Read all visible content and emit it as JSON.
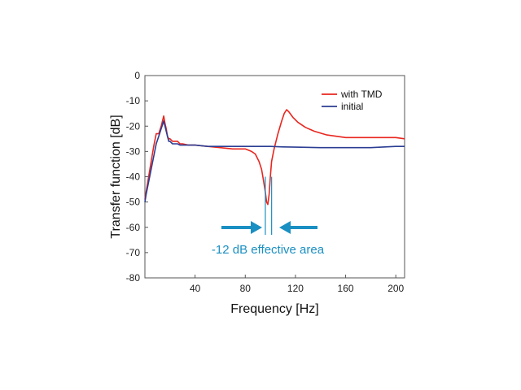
{
  "chart_data": {
    "type": "line",
    "xlabel": "Frequency [Hz]",
    "ylabel": "Transfer function [dB]",
    "xlim": [
      0,
      207
    ],
    "ylim": [
      -80,
      0
    ],
    "xticks": [
      40,
      80,
      120,
      160,
      200
    ],
    "yticks": [
      0,
      -10,
      -20,
      -30,
      -40,
      -50,
      -60,
      -70,
      -80
    ],
    "grid": false,
    "legend_position": "top-right",
    "series": [
      {
        "name": "with TMD",
        "color": "#e8261f",
        "x": [
          0,
          1,
          3,
          5,
          7,
          9,
          11,
          13,
          15,
          16,
          17,
          18,
          19,
          20,
          22,
          24,
          26,
          28,
          30,
          35,
          40,
          50,
          60,
          70,
          80,
          85,
          88,
          91,
          93,
          94,
          95,
          96,
          97,
          98,
          99,
          100,
          101,
          103,
          106,
          109,
          111,
          113,
          115,
          118,
          122,
          128,
          135,
          145,
          160,
          180,
          200,
          207
        ],
        "y": [
          -49,
          -46,
          -40,
          -34,
          -28,
          -23,
          -23,
          -20,
          -16,
          -19,
          -21,
          -24,
          -25,
          -25,
          -26,
          -26,
          -26,
          -27,
          -27,
          -27.5,
          -27.5,
          -28,
          -28.5,
          -29,
          -29,
          -30,
          -31,
          -34,
          -37,
          -40,
          -43,
          -46,
          -50,
          -51,
          -47,
          -40,
          -34,
          -29,
          -23,
          -18,
          -15,
          -13.5,
          -14.5,
          -16.5,
          -18.5,
          -20.5,
          -22,
          -23.5,
          -24.5,
          -24.5,
          -24.5,
          -25
        ]
      },
      {
        "name": "initial",
        "color": "#2a3d93",
        "x": [
          0,
          1,
          3,
          5,
          7,
          9,
          11,
          13,
          15,
          16,
          17,
          18,
          19,
          20,
          22,
          24,
          26,
          28,
          30,
          40,
          50,
          60,
          70,
          80,
          90,
          100,
          110,
          120,
          140,
          160,
          180,
          200,
          207
        ],
        "y": [
          -50,
          -47,
          -42,
          -37,
          -32,
          -27,
          -24,
          -21,
          -18,
          -20,
          -22,
          -24,
          -26,
          -26,
          -27,
          -27,
          -27,
          -27.5,
          -27.5,
          -27.5,
          -28,
          -28,
          -28,
          -28,
          -28,
          -28,
          -28.2,
          -28.3,
          -28.5,
          -28.5,
          -28.5,
          -28,
          -28
        ]
      }
    ],
    "annotations": [
      {
        "text": "-12 dB effective area",
        "color": "#1a8fc2",
        "arrows": "pointing inward",
        "marker_x": [
          96,
          101
        ],
        "marker_y": [
          -40,
          -63
        ]
      }
    ]
  }
}
